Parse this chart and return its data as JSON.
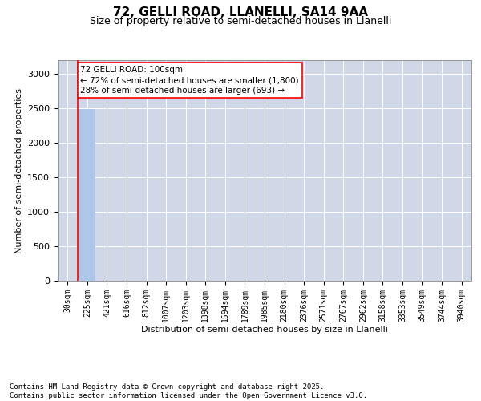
{
  "title": "72, GELLI ROAD, LLANELLI, SA14 9AA",
  "subtitle": "Size of property relative to semi-detached houses in Llanelli",
  "xlabel": "Distribution of semi-detached houses by size in Llanelli",
  "ylabel": "Number of semi-detached properties",
  "categories": [
    "30sqm",
    "225sqm",
    "421sqm",
    "616sqm",
    "812sqm",
    "1007sqm",
    "1203sqm",
    "1398sqm",
    "1594sqm",
    "1789sqm",
    "1985sqm",
    "2180sqm",
    "2376sqm",
    "2571sqm",
    "2767sqm",
    "2962sqm",
    "3158sqm",
    "3353sqm",
    "3549sqm",
    "3744sqm",
    "3940sqm"
  ],
  "values": [
    2,
    2493,
    0,
    0,
    0,
    0,
    0,
    0,
    0,
    0,
    0,
    0,
    0,
    0,
    0,
    0,
    0,
    0,
    0,
    0,
    0
  ],
  "bar_color": "#aec6e8",
  "annotation_text": "72 GELLI ROAD: 100sqm\n← 72% of semi-detached houses are smaller (1,800)\n28% of semi-detached houses are larger (693) →",
  "red_line_x": 0.5,
  "ylim": [
    0,
    3200
  ],
  "yticks": [
    0,
    500,
    1000,
    1500,
    2000,
    2500,
    3000
  ],
  "grid_color": "#d0d8e8",
  "footer": "Contains HM Land Registry data © Crown copyright and database right 2025.\nContains public sector information licensed under the Open Government Licence v3.0.",
  "title_fontsize": 11,
  "subtitle_fontsize": 9,
  "axis_label_fontsize": 8,
  "tick_fontsize": 7,
  "annotation_fontsize": 7.5,
  "footer_fontsize": 6.5
}
